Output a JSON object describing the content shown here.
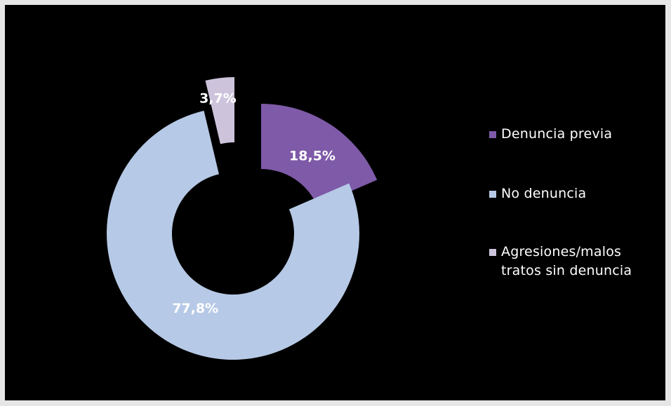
{
  "chart_data": {
    "type": "pie",
    "variant": "exploded-donut",
    "title": "",
    "legend_position": "right",
    "slices": [
      {
        "label": "Denuncia previa",
        "value": 18.5,
        "value_label": "18,5%",
        "color": "#7e5aa8"
      },
      {
        "label": "No denuncia",
        "value": 77.8,
        "value_label": "77,8%",
        "color": "#b6c9e6"
      },
      {
        "label": "Agresiones/malos tratos sin denuncia",
        "value": 3.7,
        "value_label": "3,7%",
        "color": "#cdc4dc"
      }
    ]
  },
  "legend": [
    {
      "label": "Denuncia previa",
      "color": "#7e5aa8"
    },
    {
      "label": "No denuncia",
      "color": "#b6c9e6"
    },
    {
      "label": "Agresiones/malos tratos sin denuncia",
      "color": "#cdc4dc"
    }
  ]
}
